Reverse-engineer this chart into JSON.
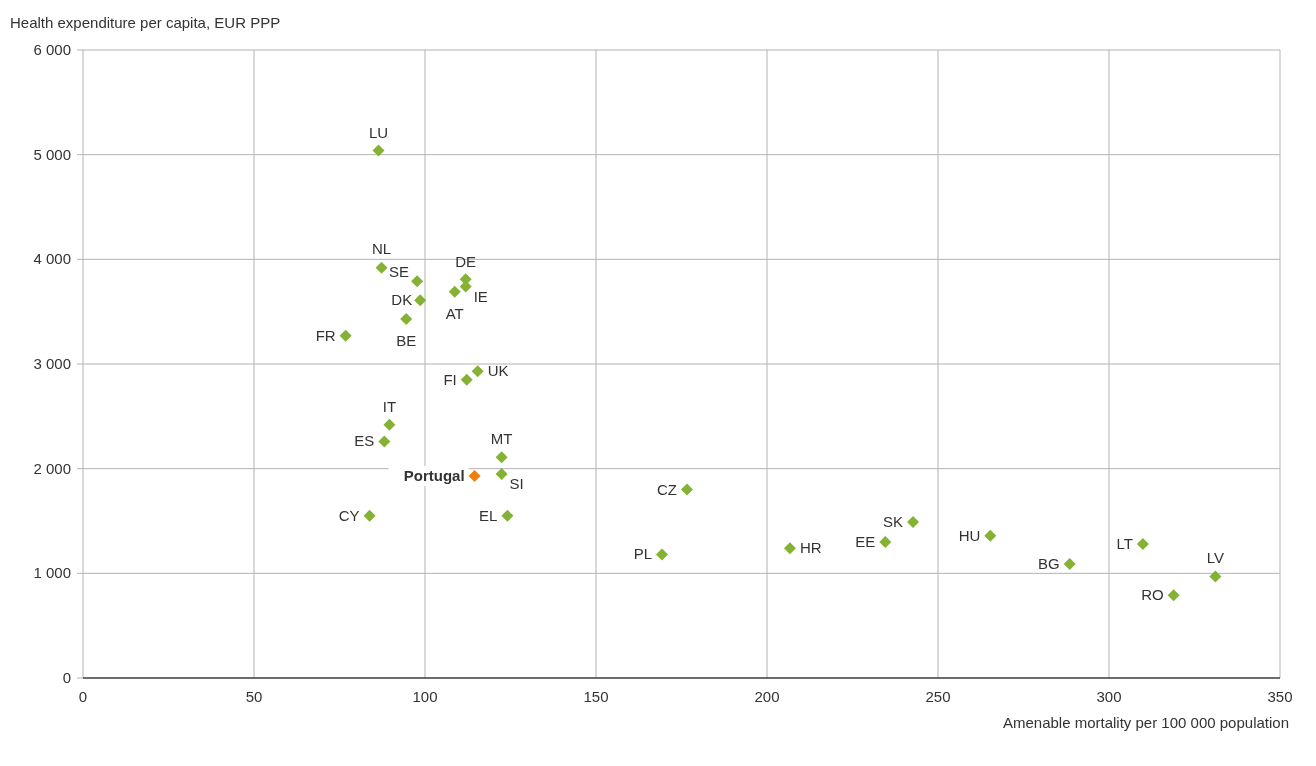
{
  "chart_data": {
    "type": "scatter",
    "xlabel": "Amenable mortality per 100 000 population",
    "ylabel": "Health expenditure per capita, EUR PPP",
    "xlim": [
      0,
      350
    ],
    "xticks": [
      0,
      50,
      100,
      150,
      200,
      250,
      300,
      350
    ],
    "ylim": [
      0,
      6000
    ],
    "yticks": [
      0,
      {
        "value": 1000,
        "label": "1 000"
      },
      {
        "value": 2000,
        "label": "2 000"
      },
      {
        "value": 3000,
        "label": "3 000"
      },
      {
        "value": 4000,
        "label": "4 000"
      },
      {
        "value": 5000,
        "label": "5 000"
      },
      {
        "value": 6000,
        "label": "6 000"
      }
    ],
    "grid": true,
    "marker": "diamond",
    "series": [
      {
        "color": "#84b234",
        "x": [
          86.4,
          87.3,
          97.7,
          111.9,
          111.9,
          108.7,
          98.6,
          94.5,
          76.8,
          115.4,
          112.2,
          89.6,
          88.1,
          122.4,
          122.4,
          83.8,
          124.1,
          176.6,
          169.3,
          206.7,
          234.6,
          242.7,
          265.3,
          288.5,
          309.9,
          318.9,
          331.1
        ],
        "values": [
          5040,
          3920,
          3790,
          3810,
          3740,
          3690,
          3610,
          3430,
          3270,
          2930,
          2850,
          2420,
          2260,
          2110,
          1950,
          1550,
          1550,
          1800,
          1180,
          1240,
          1300,
          1490,
          1360,
          1090,
          1280,
          790,
          970
        ]
      },
      {
        "color": "#f07f0a",
        "x": [
          114.5
        ],
        "values": [
          1930
        ]
      }
    ],
    "annotations": [
      {
        "text": "LU",
        "x": 86.4,
        "y": 5040
      },
      {
        "text": "NL",
        "x": 87.3,
        "y": 3920
      },
      {
        "text": "SE",
        "x": 97.7,
        "y": 3790
      },
      {
        "text": "DE",
        "x": 111.9,
        "y": 3810
      },
      {
        "text": "IE",
        "x": 111.9,
        "y": 3740
      },
      {
        "text": "AT",
        "x": 108.7,
        "y": 3690
      },
      {
        "text": "DK",
        "x": 98.6,
        "y": 3610
      },
      {
        "text": "BE",
        "x": 94.5,
        "y": 3430
      },
      {
        "text": "FR",
        "x": 76.8,
        "y": 3270
      },
      {
        "text": "UK",
        "x": 115.4,
        "y": 2930
      },
      {
        "text": "FI",
        "x": 112.2,
        "y": 2850
      },
      {
        "text": "IT",
        "x": 89.6,
        "y": 2420
      },
      {
        "text": "ES",
        "x": 88.1,
        "y": 2260
      },
      {
        "text": "MT",
        "x": 122.4,
        "y": 2110
      },
      {
        "text": "SI",
        "x": 122.4,
        "y": 1950
      },
      {
        "text": "CY",
        "x": 83.8,
        "y": 1550
      },
      {
        "text": "EL",
        "x": 124.1,
        "y": 1550
      },
      {
        "text": "CZ",
        "x": 176.6,
        "y": 1800
      },
      {
        "text": "PL",
        "x": 169.3,
        "y": 1180
      },
      {
        "text": "HR",
        "x": 206.7,
        "y": 1240
      },
      {
        "text": "EE",
        "x": 234.6,
        "y": 1300
      },
      {
        "text": "SK",
        "x": 242.7,
        "y": 1490
      },
      {
        "text": "HU",
        "x": 265.3,
        "y": 1360
      },
      {
        "text": "BG",
        "x": 288.5,
        "y": 1090
      },
      {
        "text": "LT",
        "x": 309.9,
        "y": 1280
      },
      {
        "text": "RO",
        "x": 318.9,
        "y": 790
      },
      {
        "text": "LV",
        "x": 331.1,
        "y": 970
      },
      {
        "text": "Portugal",
        "x": 114.5,
        "y": 1930
      }
    ]
  }
}
